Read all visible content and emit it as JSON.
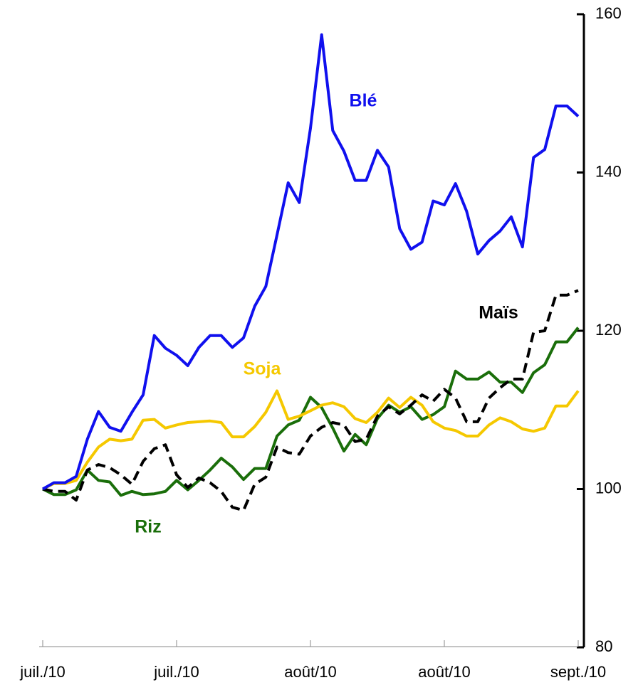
{
  "chart_data": {
    "type": "line",
    "categories": [
      "juil./10",
      null,
      null,
      null,
      null,
      null,
      null,
      null,
      null,
      null,
      null,
      null,
      "juil./10",
      null,
      null,
      null,
      null,
      null,
      null,
      null,
      null,
      null,
      null,
      null,
      "août/10",
      null,
      null,
      null,
      null,
      null,
      null,
      null,
      null,
      null,
      null,
      null,
      "août/10",
      null,
      null,
      null,
      null,
      null,
      null,
      null,
      null,
      null,
      null,
      null,
      "sept./10"
    ],
    "ylim": [
      80,
      160
    ],
    "yticks": [
      80,
      100,
      120,
      140,
      160
    ],
    "y_axis_side": "right",
    "series": [
      {
        "name": "Blé",
        "color": "#1010ee",
        "dashed": false,
        "values": [
          100,
          100.8,
          100.8,
          101.6,
          106.3,
          109.8,
          107.8,
          107.3,
          109.7,
          111.9,
          119.4,
          117.8,
          116.9,
          115.6,
          117.9,
          119.4,
          119.4,
          117.9,
          119.1,
          123.1,
          125.6,
          132.1,
          138.7,
          136.2,
          145.6,
          157.4,
          145.3,
          142.7,
          139,
          139,
          142.8,
          140.7,
          132.9,
          130.3,
          131.2,
          136.4,
          135.9,
          138.6,
          135.1,
          129.7,
          131.4,
          132.6,
          134.4,
          130.6,
          141.9,
          142.9,
          148.4,
          148.4,
          147.1
        ]
      },
      {
        "name": "Soja",
        "color": "#f5c800",
        "dashed": false,
        "values": [
          100,
          100.7,
          100.7,
          101.1,
          103.4,
          105.3,
          106.3,
          106.1,
          106.3,
          108.7,
          108.8,
          107.7,
          108.1,
          108.4,
          108.5,
          108.6,
          108.4,
          106.6,
          106.6,
          107.9,
          109.7,
          112.4,
          108.8,
          109.2,
          109.9,
          110.6,
          110.9,
          110.4,
          108.9,
          108.4,
          109.7,
          111.5,
          110.3,
          111.6,
          110.6,
          108.5,
          107.7,
          107.4,
          106.7,
          106.7,
          108.1,
          109,
          108.5,
          107.6,
          107.3,
          107.7,
          110.5,
          110.5,
          112.4
        ]
      },
      {
        "name": "Riz",
        "color": "#1a6e0a",
        "dashed": false,
        "values": [
          100,
          99.3,
          99.3,
          99.9,
          102.4,
          101.1,
          100.9,
          99.2,
          99.7,
          99.3,
          99.4,
          99.7,
          101.1,
          99.9,
          101.1,
          102.4,
          103.9,
          102.8,
          101.2,
          102.6,
          102.6,
          106.7,
          108.1,
          108.7,
          111.6,
          110.3,
          107.7,
          104.8,
          106.9,
          105.6,
          108.9,
          110.6,
          109.7,
          110.4,
          108.8,
          109.4,
          110.4,
          114.9,
          113.9,
          113.9,
          114.8,
          113.5,
          113.5,
          112.2,
          114.7,
          115.7,
          118.6,
          118.6,
          120.4
        ]
      },
      {
        "name": "Maïs",
        "color": "#000000",
        "dashed": true,
        "values": [
          100,
          99.7,
          99.7,
          98.6,
          102.4,
          103.1,
          102.7,
          101.8,
          100.6,
          103.5,
          105.1,
          105.6,
          101.8,
          100.2,
          101.4,
          100.8,
          99.7,
          97.7,
          97.3,
          100.6,
          101.5,
          105.3,
          104.6,
          104.4,
          106.7,
          107.8,
          108.4,
          108.1,
          106,
          106.3,
          109.2,
          110.4,
          109.5,
          110.6,
          111.9,
          111.1,
          112.6,
          111.5,
          108.5,
          108.5,
          111.5,
          112.8,
          113.9,
          113.9,
          119.8,
          120,
          124.5,
          124.5,
          125.1
        ]
      }
    ]
  }
}
